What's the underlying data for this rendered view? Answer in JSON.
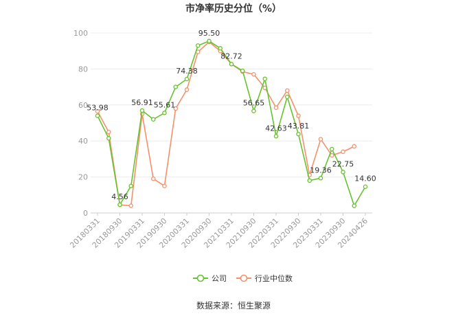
{
  "chart_data": {
    "type": "line",
    "title": "市净率历史分位（%）",
    "source": "数据来源：恒生聚源",
    "ylim": [
      0,
      100
    ],
    "yticks": [
      0,
      20,
      40,
      60,
      80,
      100
    ],
    "grid": true,
    "legend_position": "bottom-center",
    "x": [
      "20180331",
      "20180630",
      "20180930",
      "20181231",
      "20190331",
      "20190630",
      "20190930",
      "20191231",
      "20200331",
      "20200630",
      "20200930",
      "20201231",
      "20210331",
      "20210630",
      "20210930",
      "20211231",
      "20220331",
      "20220630",
      "20220930",
      "20221231",
      "20230331",
      "20230630",
      "20230930",
      "20231231",
      "20240426"
    ],
    "xtick_labels": [
      "20180331",
      "20180930",
      "20190331",
      "20190930",
      "20200331",
      "20200930",
      "20210331",
      "20210930",
      "20220331",
      "20220930",
      "20230331",
      "20230930",
      "20240426"
    ],
    "series": [
      {
        "name": "公司",
        "color": "#66c22e",
        "values": [
          53.98,
          41.5,
          4.56,
          15.0,
          56.91,
          52.0,
          55.61,
          70.0,
          74.38,
          93.0,
          95.5,
          91.5,
          82.72,
          79.0,
          56.65,
          74.5,
          42.63,
          64.5,
          43.81,
          18.0,
          19.36,
          35.5,
          22.75,
          4.0,
          14.6
        ]
      },
      {
        "name": "行业中位数",
        "color": "#f4916b",
        "values": [
          56.5,
          45.0,
          4.5,
          4.0,
          55.0,
          19.0,
          15.0,
          58.0,
          68.5,
          89.5,
          95.0,
          90.0,
          82.7,
          78.5,
          77.0,
          69.5,
          58.5,
          68.0,
          54.0,
          21.0,
          41.0,
          32.0,
          34.0,
          37.0,
          null
        ]
      }
    ],
    "data_labels": [
      {
        "index": 0,
        "text": "53.98"
      },
      {
        "index": 2,
        "text": "4.56"
      },
      {
        "index": 4,
        "text": "56.91"
      },
      {
        "index": 6,
        "text": "55.61"
      },
      {
        "index": 8,
        "text": "74.38"
      },
      {
        "index": 10,
        "text": "95.50"
      },
      {
        "index": 12,
        "text": "82.72"
      },
      {
        "index": 14,
        "text": "56.65"
      },
      {
        "index": 16,
        "text": "42.63"
      },
      {
        "index": 18,
        "text": "43.81"
      },
      {
        "index": 20,
        "text": "19.36"
      },
      {
        "index": 22,
        "text": "22.75"
      },
      {
        "index": 24,
        "text": "14.60"
      }
    ]
  }
}
